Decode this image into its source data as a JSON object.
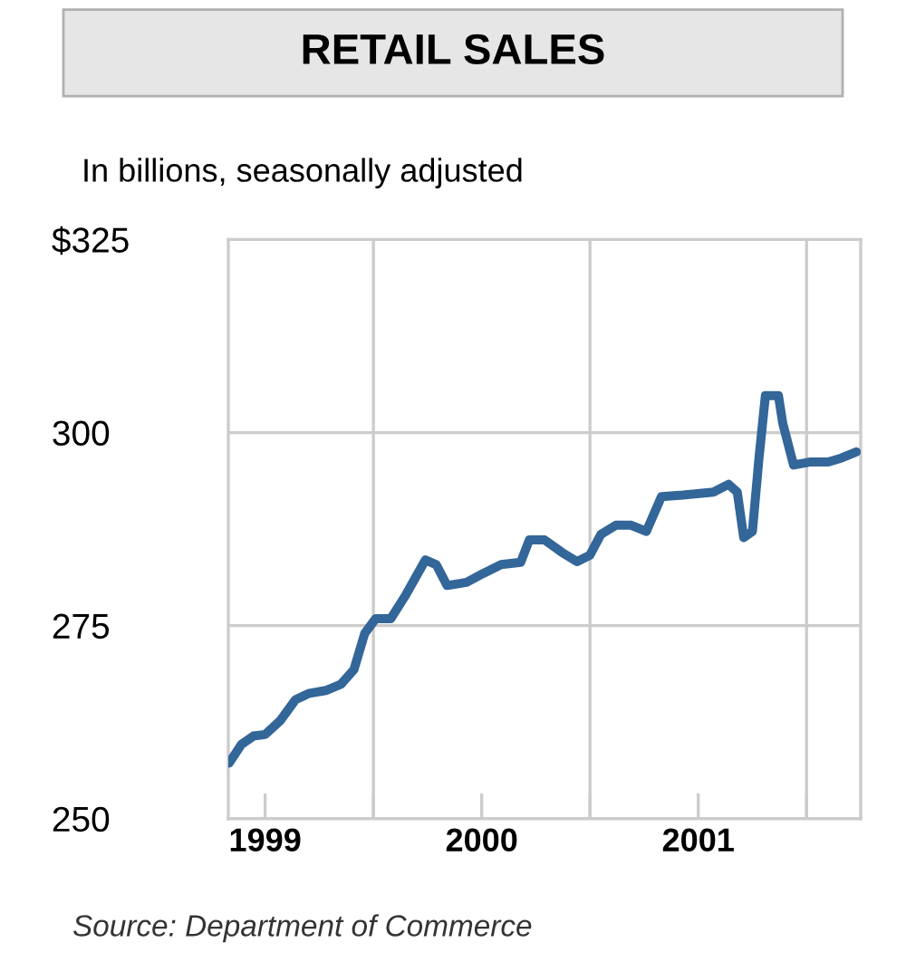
{
  "chart_data": {
    "type": "line",
    "title": "RETAIL SALES",
    "subtitle": "In billions, seasonally adjusted",
    "annotations": [
      "Source: Department of Commerce"
    ],
    "x": [
      1999.334,
      1999.39,
      1999.446,
      1999.5,
      1999.57,
      1999.64,
      1999.7,
      1999.78,
      1999.85,
      1999.91,
      1999.96,
      2000.01,
      2000.08,
      2000.15,
      2000.24,
      2000.29,
      2000.34,
      2000.43,
      2000.51,
      2000.59,
      2000.68,
      2000.72,
      2000.79,
      2000.87,
      2000.94,
      2000.999,
      2001.05,
      2001.12,
      2001.19,
      2001.26,
      2001.33,
      2001.43,
      2001.57,
      2001.64,
      2001.68,
      2001.71,
      2001.75,
      2001.78,
      2001.81,
      2001.87,
      2001.89,
      2001.94,
      2002.02,
      2002.1,
      2002.16,
      2002.23
    ],
    "series": [
      {
        "color": "#336699",
        "values": [
          257.2,
          259.6,
          260.7,
          260.9,
          262.7,
          265.4,
          266.2,
          266.6,
          267.4,
          269.3,
          274.0,
          275.9,
          275.9,
          279.0,
          283.5,
          282.9,
          280.2,
          280.6,
          281.8,
          282.9,
          283.2,
          286.1,
          286.1,
          284.5,
          283.3,
          284.1,
          286.8,
          288.0,
          288.0,
          287.2,
          291.7,
          291.9,
          292.3,
          293.3,
          292.3,
          286.4,
          287.2,
          296.6,
          304.8,
          304.8,
          301.2,
          295.8,
          296.2,
          296.2,
          296.7,
          297.5
        ]
      }
    ],
    "xlim": [
      1999.33,
      2002.25
    ],
    "xticks": [
      {
        "value": 1999.5,
        "label": "1999"
      },
      {
        "value": 2000,
        "label": null
      },
      {
        "value": 2000.5,
        "label": "2000"
      },
      {
        "value": 2001,
        "label": null
      },
      {
        "value": 2001.5,
        "label": "2001"
      },
      {
        "value": 2002,
        "label": null
      }
    ],
    "ylim": [
      250,
      325
    ],
    "yticks": [
      250,
      275,
      300,
      {
        "value": 325,
        "label": "$325"
      }
    ],
    "grid": true,
    "marker": "none",
    "line_style": "solid"
  }
}
